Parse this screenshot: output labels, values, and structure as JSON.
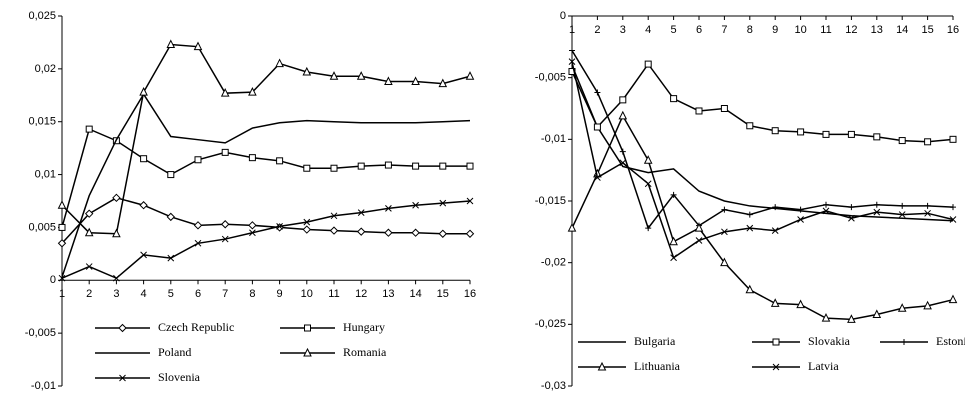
{
  "chart_data": [
    {
      "type": "line",
      "categories": [
        "1",
        "2",
        "3",
        "4",
        "5",
        "6",
        "7",
        "8",
        "9",
        "10",
        "11",
        "12",
        "13",
        "14",
        "15",
        "16"
      ],
      "ylim": [
        -0.01,
        0.025
      ],
      "yticks": [
        {
          "value": -0.01,
          "label": "-0,01"
        },
        {
          "value": -0.005,
          "label": "-0,005"
        },
        0,
        {
          "value": 0.005,
          "label": "0,005"
        },
        {
          "value": 0.01,
          "label": "0,01"
        },
        {
          "value": 0.015,
          "label": "0,015"
        },
        {
          "value": 0.02,
          "label": "0,02"
        },
        {
          "value": 0.025,
          "label": "0,025"
        }
      ],
      "legend": "bottom",
      "series": [
        {
          "name": "Czech Republic",
          "color": "#000000",
          "marker": "diamond",
          "values": [
            0.0035,
            0.0063,
            0.0078,
            0.0071,
            0.006,
            0.0052,
            0.0053,
            0.0052,
            0.005,
            0.0048,
            0.0047,
            0.0046,
            0.0045,
            0.0045,
            0.0044,
            0.0044
          ]
        },
        {
          "name": "Hungary",
          "color": "#000000",
          "marker": "square",
          "values": [
            0.005,
            0.0143,
            0.0132,
            0.0115,
            0.01,
            0.0114,
            0.0121,
            0.0116,
            0.0113,
            0.0106,
            0.0106,
            0.0108,
            0.0109,
            0.0108,
            0.0108,
            0.0108
          ]
        },
        {
          "name": "Poland",
          "color": "#000000",
          "marker": "none",
          "values": [
            0.0003,
            0.008,
            0.0133,
            0.0176,
            0.0136,
            0.0133,
            0.013,
            0.0144,
            0.0149,
            0.0151,
            0.015,
            0.0149,
            0.0149,
            0.0149,
            0.015,
            0.0151
          ]
        },
        {
          "name": "Romania",
          "color": "#000000",
          "marker": "triangle",
          "values": [
            0.0071,
            0.0045,
            0.0044,
            0.0178,
            0.0223,
            0.0221,
            0.0177,
            0.0178,
            0.0205,
            0.0197,
            0.0193,
            0.0193,
            0.0188,
            0.0188,
            0.0186,
            0.0193
          ]
        },
        {
          "name": "Slovenia",
          "color": "#000000",
          "marker": "x",
          "values": [
            0.0002,
            0.0013,
            0.0002,
            0.0024,
            0.0021,
            0.0035,
            0.0039,
            0.0045,
            0.0051,
            0.0055,
            0.0061,
            0.0064,
            0.0068,
            0.0071,
            0.0073,
            0.0075
          ]
        }
      ]
    },
    {
      "type": "line",
      "categories": [
        "1",
        "2",
        "3",
        "4",
        "5",
        "6",
        "7",
        "8",
        "9",
        "10",
        "11",
        "12",
        "13",
        "14",
        "15",
        "16"
      ],
      "ylim": [
        -0.03,
        0
      ],
      "yticks": [
        {
          "value": -0.03,
          "label": "-0,03"
        },
        {
          "value": -0.025,
          "label": "-0,025"
        },
        {
          "value": -0.02,
          "label": "-0,02"
        },
        {
          "value": -0.015,
          "label": "-0,015"
        },
        {
          "value": -0.01,
          "label": "-0,01"
        },
        {
          "value": -0.005,
          "label": "-0,005"
        },
        0
      ],
      "legend": "bottom",
      "series": [
        {
          "name": "Bulgaria",
          "color": "#000000",
          "marker": "none",
          "values": [
            -0.004,
            -0.009,
            -0.0122,
            -0.0127,
            -0.0124,
            -0.0142,
            -0.015,
            -0.0154,
            -0.0156,
            -0.0158,
            -0.016,
            -0.0162,
            -0.0163,
            -0.0164,
            -0.0165,
            -0.0166
          ]
        },
        {
          "name": "Slovakia",
          "color": "#000000",
          "marker": "square",
          "values": [
            -0.0045,
            -0.009,
            -0.0068,
            -0.0039,
            -0.0067,
            -0.0077,
            -0.0075,
            -0.0089,
            -0.0093,
            -0.0094,
            -0.0096,
            -0.0096,
            -0.0098,
            -0.0101,
            -0.0102,
            -0.01
          ]
        },
        {
          "name": "Estonia",
          "color": "#000000",
          "marker": "plus",
          "values": [
            -0.0028,
            -0.0062,
            -0.011,
            -0.0172,
            -0.0145,
            -0.017,
            -0.0157,
            -0.0161,
            -0.0155,
            -0.0157,
            -0.0153,
            -0.0155,
            -0.0153,
            -0.0154,
            -0.0154,
            -0.0155
          ]
        },
        {
          "name": "Lithuania",
          "color": "#000000",
          "marker": "triangle",
          "values": [
            -0.0172,
            -0.0128,
            -0.0081,
            -0.0117,
            -0.0183,
            -0.0172,
            -0.02,
            -0.0222,
            -0.0233,
            -0.0234,
            -0.0245,
            -0.0246,
            -0.0242,
            -0.0237,
            -0.0235,
            -0.023
          ]
        },
        {
          "name": "Latvia",
          "color": "#000000",
          "marker": "x",
          "values": [
            -0.0037,
            -0.0131,
            -0.0119,
            -0.0136,
            -0.0196,
            -0.0182,
            -0.0175,
            -0.0172,
            -0.0174,
            -0.0165,
            -0.0158,
            -0.0164,
            -0.0159,
            -0.0161,
            -0.016,
            -0.0165
          ]
        }
      ]
    }
  ]
}
